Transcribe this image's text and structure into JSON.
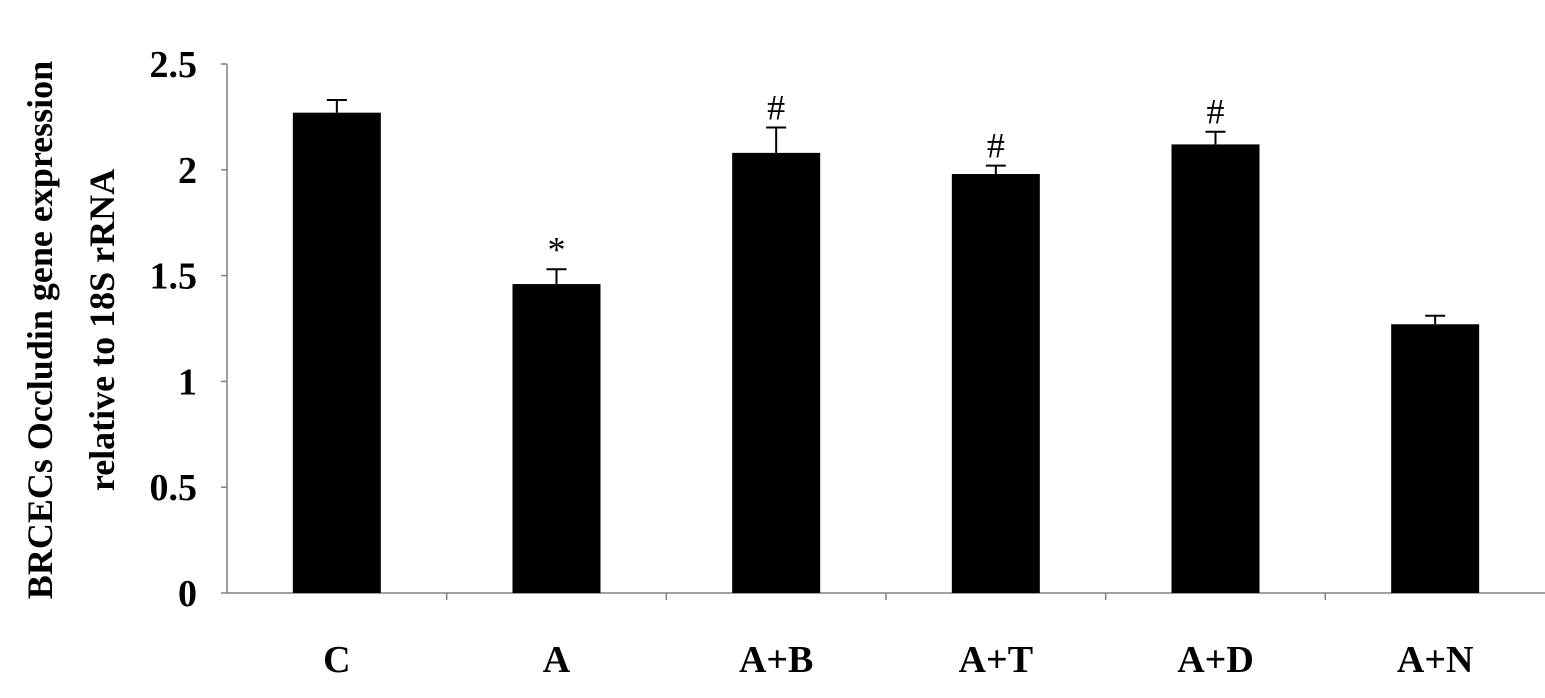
{
  "chart_data": {
    "type": "bar",
    "title": "",
    "xlabel": "",
    "ylabel_lines": [
      "BRCECs Occludin gene expression",
      "relative to 18S rRNA"
    ],
    "categories": [
      "C",
      "A",
      "A+B",
      "A+T",
      "A+D",
      "A+N"
    ],
    "values": [
      2.27,
      1.46,
      2.08,
      1.98,
      2.12,
      1.27
    ],
    "errors": [
      0.06,
      0.07,
      0.12,
      0.04,
      0.06,
      0.04
    ],
    "annotations": [
      "",
      "*",
      "#",
      "#",
      "#",
      ""
    ],
    "ylim": [
      0,
      2.5
    ],
    "yticks": [
      0,
      0.5,
      1,
      1.5,
      2,
      2.5
    ],
    "ytick_labels": [
      "0",
      "0.5",
      "1",
      "1.5",
      "2",
      "2.5"
    ],
    "grid": false,
    "legend": false,
    "bar_color": "#000000",
    "axis_color": "#808080"
  }
}
